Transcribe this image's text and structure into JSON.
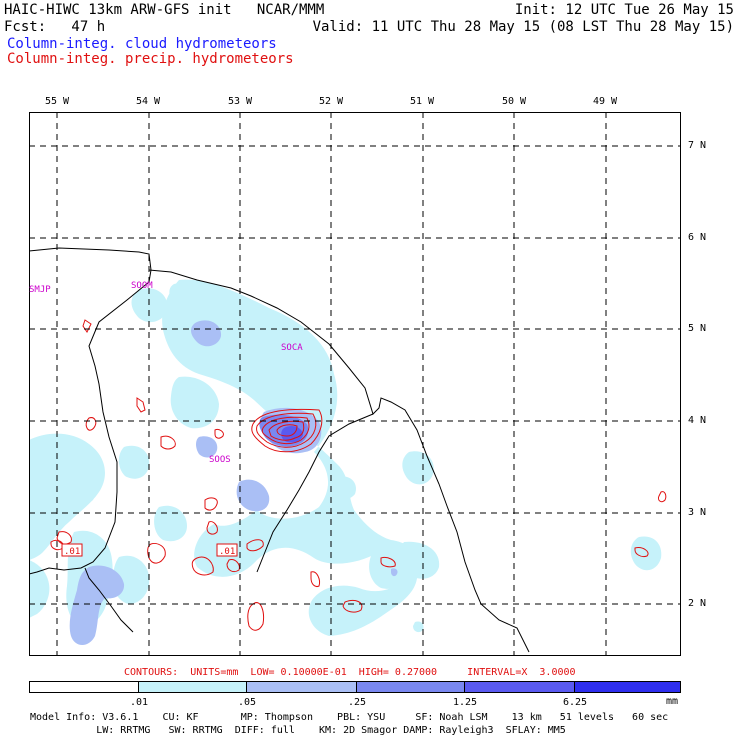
{
  "header": {
    "line1_left": "HAIC-HIWC 13km ARW-GFS init   NCAR/MMM",
    "line1_right": "Init: 12 UTC Tue 26 May 15",
    "line2_left": "Fcst:   47 h",
    "line2_right": "Valid: 11 UTC Thu 28 May 15 (08 LST Thu 28 May 15)",
    "line3": "Column-integ. cloud hydrometeors",
    "line4": "Column-integ. precip. hydrometeors"
  },
  "map": {
    "lon_labels": [
      "55 W",
      "54 W",
      "53 W",
      "52 W",
      "51 W",
      "50 W",
      "49 W"
    ],
    "lat_labels": [
      "7 N",
      "6 N",
      "5 N",
      "4 N",
      "3 N",
      "2 N"
    ],
    "stations": [
      "SMJP",
      "SOOM",
      "SOCA",
      "SOOS"
    ],
    "contour_labels": [
      ".01",
      ".01"
    ]
  },
  "contours_info": "CONTOURS:  UNITS=mm  LOW= 0.10000E-01  HIGH= 0.27000     INTERVAL=X  3.0000",
  "legend": {
    "colors": [
      "#ffffff",
      "#c6f2fa",
      "#aabff5",
      "#7a88f0",
      "#5a5af0",
      "#2e2eee",
      "#1010e6"
    ],
    "ticks": [
      ".01",
      ".05",
      ".25",
      "1.25",
      "6.25"
    ],
    "units": "mm"
  },
  "footer": {
    "line1": "Model Info: V3.6.1    CU: KF       MP: Thompson    PBL: YSU     SF: Noah LSM    13 km   51 levels   60 sec",
    "line2": "           LW: RRTMG   SW: RRTMG  DIFF: full    KM: 2D Smagor DAMP: Rayleigh3  SFLAY: MM5"
  }
}
